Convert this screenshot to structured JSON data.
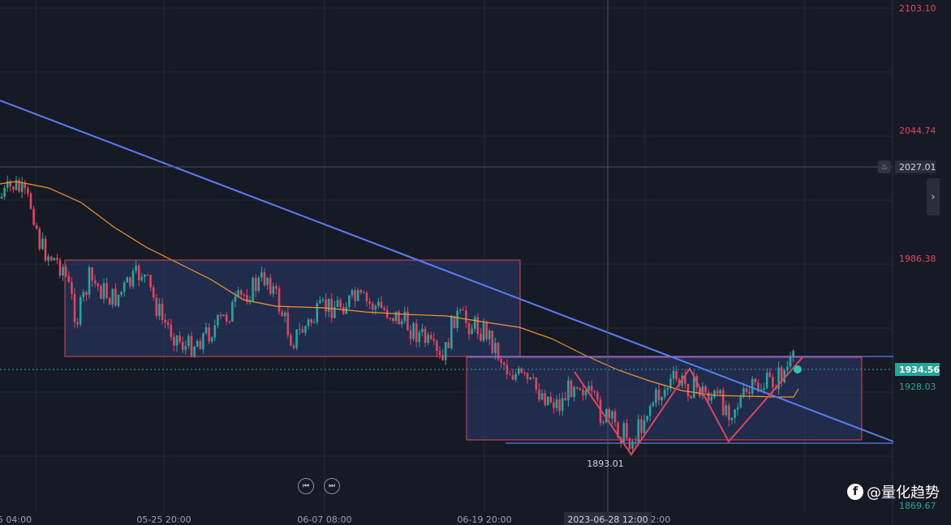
{
  "chart_data": {
    "type": "candlestick",
    "title": "",
    "price_axis": {
      "ticks": [
        2103.1,
        2044.74,
        1986.38,
        1928.03,
        1869.67
      ],
      "range": [
        1866,
        2107
      ],
      "current_price": 1934.56,
      "crosshair_price": 2027.01,
      "low_annotation": 1893.01
    },
    "time_axis": {
      "ticks": [
        "5 04:00",
        "05-25 20:00",
        "06-07 08:00",
        "06-19 20:00",
        ":2:00"
      ],
      "crosshair_label": "2023-06-28 12:00"
    },
    "colors": {
      "up": "#26a69a",
      "down": "#e0455c",
      "trendline": "#5b7cf0",
      "moving_average": "#f0962a",
      "zigzag": "#e0455c",
      "box_fill": "#2b3a6e",
      "box_border": "#e0455c"
    },
    "legend": "none",
    "grid": true
  },
  "watermark": {
    "text": "@量化趋势",
    "icon": "facebook-icon"
  },
  "controls": {
    "prev_icon": "skip-back-icon",
    "next_icon": "skip-forward-icon"
  },
  "bell_icon": "bell-icon",
  "side_arrow_icon": "chevron-right-icon"
}
